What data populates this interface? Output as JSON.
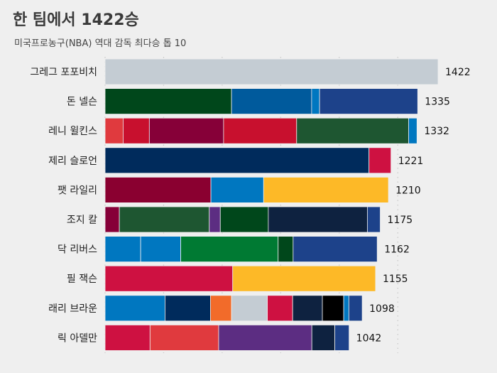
{
  "title": "한 팀에서 1422승",
  "subtitle": "미국프로농구(NBA) 역대 감독 최다승 톱 10",
  "chart_data": {
    "type": "bar",
    "orientation": "horizontal",
    "stacked": true,
    "title": "한 팀에서 1422승",
    "subtitle": "미국프로농구(NBA) 역대 감독 최다승 톱 10",
    "xlabel": "",
    "ylabel": "",
    "xlim": [
      0,
      1422
    ],
    "grid": "vertical dotted",
    "legend": "none",
    "categories": [
      "그레그 포포비치",
      "돈 넬슨",
      "레니 윌킨스",
      "제리 슬로언",
      "팻 라일리",
      "조지 칼",
      "닥 리버스",
      "필 잭슨",
      "래리 브라운",
      "릭 아델만"
    ],
    "totals": [
      1422,
      1335,
      1332,
      1221,
      1210,
      1175,
      1162,
      1155,
      1098,
      1042
    ],
    "segments": [
      [
        {
          "value": 1422,
          "color": "#c4ccd3"
        }
      ],
      [
        {
          "value": 540,
          "color": "#00471b"
        },
        {
          "value": 342,
          "color": "#005a9c"
        },
        {
          "value": 34,
          "color": "#0077c0"
        },
        {
          "value": 419,
          "color": "#1d428a"
        }
      ],
      [
        {
          "value": 77,
          "color": "#e03a3e"
        },
        {
          "value": 112,
          "color": "#c8102e"
        },
        {
          "value": 317,
          "color": "#860038"
        },
        {
          "value": 312,
          "color": "#c8102e"
        },
        {
          "value": 478,
          "color": "#1e5631"
        },
        {
          "value": 36,
          "color": "#0077c0"
        }
      ],
      [
        {
          "value": 1127,
          "color": "#002b5c"
        },
        {
          "value": 94,
          "color": "#ce1141"
        }
      ],
      [
        {
          "value": 452,
          "color": "#8a0030"
        },
        {
          "value": 225,
          "color": "#0077c0"
        },
        {
          "value": 533,
          "color": "#fdb927"
        }
      ],
      [
        {
          "value": 61,
          "color": "#860038"
        },
        {
          "value": 384,
          "color": "#1e5631"
        },
        {
          "value": 47,
          "color": "#5c2d82"
        },
        {
          "value": 205,
          "color": "#00471b"
        },
        {
          "value": 423,
          "color": "#0e2240"
        },
        {
          "value": 55,
          "color": "#1d428a"
        }
      ],
      [
        {
          "value": 152,
          "color": "#0077c0"
        },
        {
          "value": 171,
          "color": "#0077c0"
        },
        {
          "value": 416,
          "color": "#007a33"
        },
        {
          "value": 64,
          "color": "#00471b"
        },
        {
          "value": 359,
          "color": "#1d428a"
        }
      ],
      [
        {
          "value": 545,
          "color": "#ce1141"
        },
        {
          "value": 610,
          "color": "#fdb927"
        }
      ],
      [
        {
          "value": 256,
          "color": "#0077c0"
        },
        {
          "value": 194,
          "color": "#002b5c"
        },
        {
          "value": 90,
          "color": "#f26b2a"
        },
        {
          "value": 153,
          "color": "#c4ccd3"
        },
        {
          "value": 108,
          "color": "#ce1141"
        },
        {
          "value": 127,
          "color": "#0e2240"
        },
        {
          "value": 91,
          "color": "#000000"
        },
        {
          "value": 22,
          "color": "#0077c0"
        },
        {
          "value": 57,
          "color": "#1d428a"
        }
      ],
      [
        {
          "value": 192,
          "color": "#ce1141"
        },
        {
          "value": 293,
          "color": "#e03a3e"
        },
        {
          "value": 398,
          "color": "#5c2d82"
        },
        {
          "value": 98,
          "color": "#0e2240"
        },
        {
          "value": 61,
          "color": "#1d428a"
        }
      ]
    ]
  }
}
